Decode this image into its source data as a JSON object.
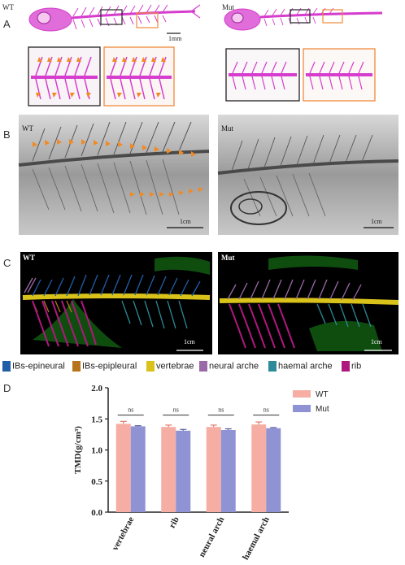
{
  "panels": {
    "A": {
      "letter": "A",
      "left_label": "WT",
      "right_label": "Mut",
      "scale_label": "1mm"
    },
    "B": {
      "letter": "B",
      "left_label": "WT",
      "right_label": "Mut",
      "scale_label_left": "1cm",
      "scale_label_right": "1cm"
    },
    "C": {
      "letter": "C",
      "left_label": "WT",
      "right_label": "Mut",
      "scale_label_left": "1cm",
      "scale_label_right": "1cm"
    },
    "D": {
      "letter": "D"
    }
  },
  "legend_c": [
    {
      "label": "IBs-epineural",
      "color": "#1f5fa8"
    },
    {
      "label": "IBs-epipleural",
      "color": "#b8741a"
    },
    {
      "label": "vertebrae",
      "color": "#d9c21a"
    },
    {
      "label": "neural arche",
      "color": "#9a6aa8"
    },
    {
      "label": "haemal arche",
      "color": "#2c8a9a"
    },
    {
      "label": "rib",
      "color": "#b0177e"
    }
  ],
  "colors": {
    "wt_bar": "#f6aea4",
    "mut_bar": "#8f93d4",
    "alizarin": "#d63ccd",
    "box_black": "#222222",
    "box_orange": "#f08a3c",
    "arrow_orange": "#f08a24"
  },
  "chart_data": {
    "type": "bar",
    "title": "",
    "xlabel": "",
    "ylabel": "TMD(g/cm³)",
    "ylim": [
      0,
      2.0
    ],
    "yticks": [
      "0.0",
      "0.5",
      "1.0",
      "1.5",
      "2.0"
    ],
    "categories": [
      "vertebrae",
      "rib",
      "neural arch",
      "haemal arch"
    ],
    "series": [
      {
        "name": "WT",
        "values": [
          1.42,
          1.37,
          1.37,
          1.41
        ],
        "errors": [
          0.04,
          0.03,
          0.03,
          0.04
        ]
      },
      {
        "name": "Mut",
        "values": [
          1.38,
          1.31,
          1.32,
          1.35
        ],
        "errors": [
          0.01,
          0.02,
          0.02,
          0.01
        ]
      }
    ],
    "significance": [
      "ns",
      "ns",
      "ns",
      "ns"
    ],
    "legend_position": "top-right",
    "grid": false
  }
}
